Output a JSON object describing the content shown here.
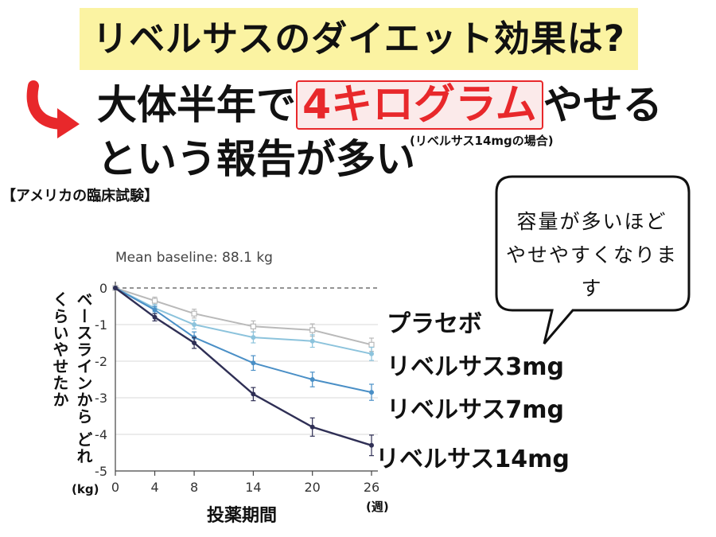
{
  "header": {
    "title": "リベルサスのダイエット効果は?",
    "headline_prefix": "大体半年で",
    "headline_highlight": "4キログラム",
    "headline_suffix": "やせる",
    "headline_line2": "という報告が多い",
    "dose_note": "(リベルサス14mgの場合)"
  },
  "trial_label": "【アメリカの臨床試験】",
  "bubble": {
    "line1": "容量が多いほど",
    "line2": "やせやすくなります"
  },
  "colors": {
    "title_band": "#fbf3a2",
    "accent_red": "#e8282b",
    "placebo": "#b9b9b9",
    "dose3": "#8cc3dc",
    "dose7": "#4a8fc6",
    "dose14": "#2f2f55"
  },
  "chart_data": {
    "type": "line",
    "baseline_note": "Mean baseline: 88.1 kg",
    "x": [
      0,
      4,
      8,
      14,
      20,
      26
    ],
    "x_ticks": [
      "0",
      "4",
      "8",
      "14",
      "20",
      "26"
    ],
    "y_ticks": [
      "0",
      "-1",
      "-2",
      "-3",
      "-4",
      "-5"
    ],
    "xlim": [
      0,
      26
    ],
    "ylim": [
      -5,
      0
    ],
    "xlabel": "投薬期間",
    "ylabel": "ベースラインから どれくらいやせたか",
    "x_unit": "(週)",
    "y_unit": "(kg)",
    "grid": true,
    "series": [
      {
        "name": "プラセボ",
        "values": [
          0,
          -0.35,
          -0.7,
          -1.05,
          -1.15,
          -1.55
        ],
        "errors": [
          0.05,
          0.1,
          0.12,
          0.15,
          0.17,
          0.18
        ]
      },
      {
        "name": "リベルサス3mg",
        "values": [
          0,
          -0.55,
          -1.0,
          -1.35,
          -1.45,
          -1.8
        ],
        "errors": [
          0.05,
          0.1,
          0.12,
          0.15,
          0.17,
          0.18
        ]
      },
      {
        "name": "リベルサス7mg",
        "values": [
          0,
          -0.6,
          -1.35,
          -2.05,
          -2.5,
          -2.85
        ],
        "errors": [
          0.05,
          0.1,
          0.15,
          0.2,
          0.2,
          0.22
        ]
      },
      {
        "name": "リベルサス14mg",
        "values": [
          0,
          -0.8,
          -1.5,
          -2.9,
          -3.8,
          -4.3
        ],
        "errors": [
          0.05,
          0.1,
          0.15,
          0.18,
          0.25,
          0.28
        ]
      }
    ]
  }
}
